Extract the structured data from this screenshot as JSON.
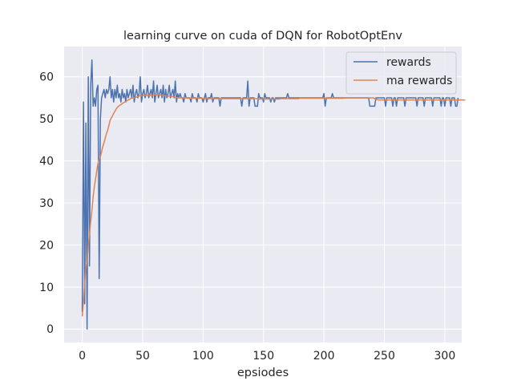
{
  "chart_data": {
    "type": "line",
    "title": "learning curve on cuda of DQN for RobotOptEnv",
    "xlabel": "epsiodes",
    "ylabel": "",
    "xlim": [
      -15,
      314
    ],
    "ylim": [
      -3.2,
      67.2
    ],
    "xticks": [
      0,
      50,
      100,
      150,
      200,
      250,
      300
    ],
    "yticks": [
      0,
      10,
      20,
      30,
      40,
      50,
      60
    ],
    "grid": true,
    "legend_position": "top-right",
    "colors": {
      "rewards": "#4c72b0",
      "ma_rewards": "#dd8452",
      "background": "#eaeaf2",
      "grid": "#ffffff"
    },
    "series": [
      {
        "name": "rewards",
        "color": "#4c72b0",
        "values": [
          4,
          54,
          6,
          49,
          0,
          60,
          15,
          58,
          64,
          53,
          55,
          53,
          57,
          58,
          12,
          50,
          55,
          56,
          57,
          55,
          57,
          56,
          57,
          60,
          55,
          57,
          54,
          57,
          55,
          58,
          55,
          56,
          54,
          57,
          55,
          56,
          54,
          57,
          55,
          56,
          57,
          55,
          58,
          54,
          56,
          57,
          55,
          56,
          60,
          54,
          56,
          57,
          55,
          56,
          58,
          55,
          56,
          57,
          55,
          59,
          54,
          56,
          58,
          55,
          56,
          57,
          55,
          58,
          54,
          57,
          55,
          56,
          58,
          55,
          56,
          57,
          55,
          59,
          54,
          56,
          55,
          56,
          55,
          55,
          54,
          56,
          55,
          55,
          55,
          55,
          54,
          56,
          55,
          55,
          55,
          54,
          56,
          55,
          55,
          55,
          54,
          55,
          56,
          54,
          55,
          55,
          55,
          56,
          54,
          55,
          55,
          55,
          55,
          55,
          53,
          55,
          55,
          55,
          55,
          55,
          55,
          55,
          55,
          55,
          55,
          55,
          55,
          55,
          55,
          55,
          55,
          55,
          53,
          55,
          55,
          55,
          55,
          59,
          53,
          55,
          55,
          55,
          55,
          53,
          53,
          53,
          56,
          55,
          55,
          55,
          54,
          56,
          55,
          55,
          55,
          55,
          54,
          55,
          55,
          54,
          55,
          55,
          55,
          55,
          55,
          55,
          55,
          55,
          55,
          55,
          56,
          55,
          55,
          55,
          55,
          55,
          55,
          55,
          55,
          55,
          55,
          55,
          55,
          55,
          55,
          55,
          55,
          55,
          55,
          55,
          55,
          55,
          55,
          55,
          55,
          55,
          55,
          55,
          55,
          55,
          56,
          53,
          55,
          55,
          55,
          55,
          55,
          56,
          55,
          55,
          55,
          55,
          55,
          55,
          55,
          55,
          55,
          55,
          55,
          55,
          55,
          55,
          55,
          55,
          55,
          55,
          55,
          55,
          55,
          55,
          55,
          55,
          55,
          55,
          55,
          55,
          55,
          55,
          53,
          53,
          53,
          53,
          53,
          55,
          55,
          55,
          55,
          55,
          55,
          55,
          55,
          53,
          55,
          55,
          55,
          55,
          55,
          53,
          55,
          55,
          53,
          55,
          55,
          55,
          55,
          55,
          55,
          53,
          55,
          55,
          55,
          55,
          55,
          55,
          55,
          55,
          55,
          53,
          55,
          55,
          55,
          55,
          55,
          53,
          55,
          55,
          55,
          55,
          55,
          55,
          53,
          55,
          55,
          55,
          55,
          55,
          55,
          53,
          55,
          55,
          53,
          55,
          55,
          55,
          55,
          53,
          55,
          55,
          55,
          53,
          53,
          55
        ]
      },
      {
        "name": "ma rewards",
        "color": "#dd8452",
        "values": [
          3.0,
          6.5,
          11.0,
          14.4,
          16.0,
          20.0,
          22.7,
          25.6,
          28.2,
          31.4,
          33.8,
          35.7,
          37.6,
          39.3,
          40.5,
          41.0,
          42.2,
          43.4,
          44.3,
          45.4,
          46.4,
          47.3,
          48.4,
          49.6,
          50.2,
          50.7,
          51.3,
          51.8,
          52.3,
          52.7,
          53.0,
          53.2,
          53.4,
          53.6,
          53.8,
          54.0,
          54.1,
          54.3,
          54.5,
          54.6,
          54.8,
          54.9,
          55.0,
          55.0,
          55.1,
          55.2,
          55.3,
          55.4,
          55.5,
          55.5,
          55.5,
          55.6,
          55.6,
          55.6,
          55.6,
          55.6,
          55.6,
          55.6,
          55.6,
          55.7,
          55.7,
          55.7,
          55.7,
          55.7,
          55.7,
          55.6,
          55.6,
          55.5,
          55.5,
          55.5,
          55.5,
          55.4,
          55.4,
          55.4,
          55.3,
          55.3,
          55.2,
          55.1,
          55.1,
          55.0,
          55.0,
          55.0,
          55.0,
          55.0,
          55.0,
          55.0,
          55.0,
          54.9,
          54.9,
          54.9,
          54.9,
          54.9,
          54.9,
          54.9,
          54.9,
          54.9,
          54.9,
          54.9,
          54.9,
          54.9,
          54.8,
          54.8,
          54.8,
          54.8,
          54.8,
          54.8,
          54.8,
          54.8,
          54.8,
          54.8,
          54.8,
          54.8,
          54.8,
          54.8,
          54.8,
          54.8,
          54.8,
          54.8,
          54.8,
          54.8,
          54.8,
          54.8,
          54.8,
          54.8,
          54.8,
          54.8,
          54.8,
          54.8,
          54.8,
          54.8,
          54.8,
          54.8,
          54.8,
          54.8,
          54.8,
          54.8,
          54.8,
          54.8,
          54.8,
          54.8,
          54.8,
          54.8,
          54.8,
          54.8,
          54.8,
          54.8,
          54.7,
          54.7,
          54.7,
          54.7,
          54.7,
          54.7,
          54.7,
          54.7,
          54.7,
          54.7,
          54.7,
          54.7,
          54.7,
          54.7,
          54.7,
          54.7,
          54.7,
          54.7,
          54.8,
          54.8,
          54.8,
          54.8,
          54.8,
          54.8,
          54.8,
          54.8,
          54.8,
          54.8,
          54.8,
          54.8,
          54.8,
          54.8,
          54.8,
          54.8,
          54.9,
          54.9,
          54.9,
          54.9,
          54.9,
          54.9,
          54.9,
          54.9,
          54.9,
          54.9,
          54.9,
          54.9,
          54.9,
          54.9,
          54.9,
          54.9,
          54.9,
          54.9,
          54.9,
          54.9,
          54.9,
          54.9,
          54.9,
          54.9,
          54.9,
          54.9,
          54.9,
          54.9,
          54.9,
          54.9,
          54.9,
          54.9,
          54.9,
          54.9,
          54.9,
          54.9,
          54.9,
          55.0,
          55.0,
          55.0,
          55.0,
          55.0,
          55.0,
          55.0,
          55.0,
          55.0,
          55.0,
          55.0,
          55.0,
          55.0,
          55.0,
          55.0,
          55.0,
          55.0,
          55.0,
          55.0,
          55.0,
          55.0,
          55.0,
          55.0,
          55.0,
          55.0,
          54.8,
          54.7,
          54.6,
          54.5,
          54.5,
          54.5,
          54.5,
          54.5,
          54.5,
          54.5,
          54.5,
          54.5,
          54.5,
          54.5,
          54.5,
          54.5,
          54.5,
          54.5,
          54.5,
          54.5,
          54.5,
          54.5,
          54.5,
          54.5,
          54.5,
          54.5,
          54.5,
          54.5,
          54.5,
          54.5,
          54.5,
          54.5,
          54.5,
          54.5,
          54.5,
          54.5,
          54.5,
          54.5,
          54.5,
          54.5,
          54.5,
          54.5,
          54.5,
          54.5,
          54.5,
          54.5,
          54.5,
          54.5,
          54.5,
          54.5,
          54.5,
          54.5,
          54.5,
          54.5,
          54.5,
          54.5,
          54.5,
          54.5,
          54.5,
          54.5,
          54.5,
          54.5,
          54.5,
          54.5,
          54.5,
          54.5,
          54.5,
          54.5,
          54.5,
          54.5,
          54.5,
          54.5,
          54.5,
          54.5,
          54.5,
          54.5
        ]
      }
    ]
  }
}
